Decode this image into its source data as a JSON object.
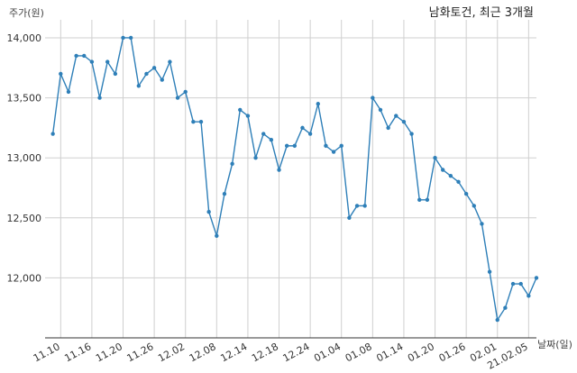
{
  "chart_data": {
    "type": "line",
    "title": "남화토건, 최근 3개월",
    "ylabel": "주가(원)",
    "xlabel": "날짜(일)",
    "ylim": [
      11500,
      14150
    ],
    "yticks": [
      12000,
      12500,
      13000,
      13500,
      14000
    ],
    "ytick_labels": [
      "12,000",
      "12,500",
      "13,000",
      "13,500",
      "14,000"
    ],
    "grid": true,
    "x_tick_labels": [
      "11.10",
      "11.16",
      "11.20",
      "11.26",
      "12.02",
      "12.08",
      "12.14",
      "12.18",
      "12.24",
      "01.04",
      "01.08",
      "01.14",
      "01.20",
      "01.26",
      "02.01",
      "21.02.05"
    ],
    "x_tick_index": [
      2,
      6,
      10,
      14,
      18,
      22,
      26,
      30,
      34,
      38,
      42,
      46,
      50,
      54,
      58,
      62
    ],
    "x_index_max": 63,
    "series": [
      {
        "color": "#2e7fb8",
        "values": [
          13200,
          13700,
          13550,
          13850,
          13850,
          13800,
          13500,
          13800,
          13700,
          14000,
          14000,
          13600,
          13700,
          13750,
          13650,
          13800,
          13500,
          13550,
          13300,
          13300,
          12550,
          12350,
          12700,
          12950,
          13400,
          13350,
          13000,
          13200,
          13150,
          12900,
          13100,
          13100,
          13250,
          13200,
          13450,
          13100,
          13050,
          13100,
          12500,
          12600,
          12600,
          13500,
          13400,
          13250,
          13350,
          13300,
          13200,
          12650,
          12650,
          13000,
          12900,
          12850,
          12800,
          12700,
          12600,
          12450,
          12050,
          11650,
          11750,
          11950,
          11950,
          11850,
          12000
        ]
      }
    ]
  }
}
